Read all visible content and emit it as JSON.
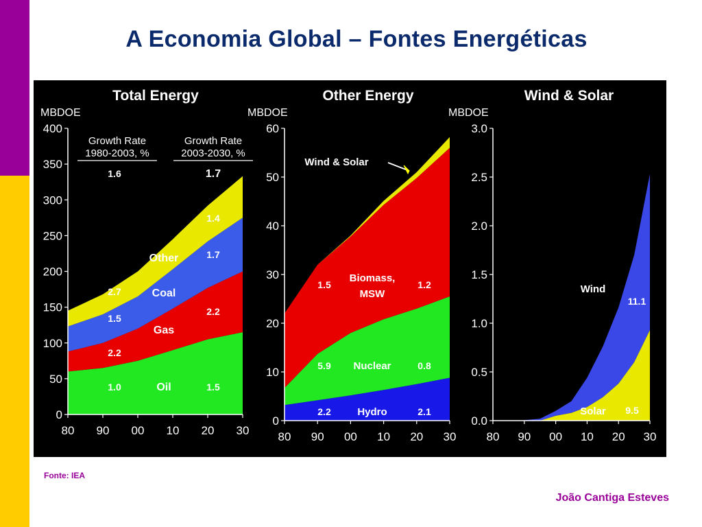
{
  "slide": {
    "title": "A Economia Global – Fontes Energéticas",
    "source": "Fonte: IEA",
    "author": "João Cantiga Esteves",
    "colors": {
      "sidebar_top": "#990099",
      "sidebar_bottom": "#ffcc00",
      "title": "#0b2a6b",
      "footer": "#990099"
    }
  },
  "chart_data": [
    {
      "type": "area",
      "stacked": true,
      "title": "Total Energy",
      "ylabel": "MBDOE",
      "ylim": [
        0,
        400
      ],
      "yticks": [
        0,
        50,
        100,
        150,
        200,
        250,
        300,
        350,
        400
      ],
      "xtick_labels": [
        "80",
        "90",
        "00",
        "10",
        "20",
        "30"
      ],
      "x": [
        1980,
        1990,
        2000,
        2010,
        2020,
        2030
      ],
      "series": [
        {
          "name": "Oil",
          "color": "#22e822",
          "values": [
            60,
            65,
            75,
            90,
            105,
            115
          ]
        },
        {
          "name": "Gas",
          "color": "#e80000",
          "values": [
            28,
            35,
            45,
            58,
            72,
            85
          ]
        },
        {
          "name": "Coal",
          "color": "#3a5ce8",
          "values": [
            35,
            40,
            45,
            55,
            65,
            75
          ]
        },
        {
          "name": "Other",
          "color": "#e8e800",
          "values": [
            22,
            28,
            35,
            42,
            50,
            58
          ]
        }
      ],
      "headers": [
        {
          "text": "Growth Rate\n1980-2003, %"
        },
        {
          "text": "Growth Rate\n2003-2030, %"
        }
      ],
      "annotations": [
        {
          "text": "1.6"
        },
        {
          "text": "1.7"
        },
        {
          "text": "2.7"
        },
        {
          "text": "1.4"
        },
        {
          "text": "Other"
        },
        {
          "text": "1.7"
        },
        {
          "text": "Coal"
        },
        {
          "text": "1.5"
        },
        {
          "text": "Gas"
        },
        {
          "text": "2.2"
        },
        {
          "text": "2.2"
        },
        {
          "text": "1.0"
        },
        {
          "text": "Oil"
        },
        {
          "text": "1.5"
        }
      ]
    },
    {
      "type": "area",
      "stacked": true,
      "title": "Other Energy",
      "ylabel": "MBDOE",
      "ylim": [
        0,
        60
      ],
      "yticks": [
        0,
        10,
        20,
        30,
        40,
        50,
        60
      ],
      "xtick_labels": [
        "80",
        "90",
        "00",
        "10",
        "20",
        "30"
      ],
      "x": [
        1980,
        1990,
        2000,
        2010,
        2020,
        2030
      ],
      "series": [
        {
          "name": "Hydro",
          "color": "#1818e8",
          "values": [
            3.2,
            4.2,
            5.2,
            6.3,
            7.5,
            8.8
          ]
        },
        {
          "name": "Nuclear",
          "color": "#22e822",
          "values": [
            3.5,
            9.5,
            12.8,
            14.5,
            15.5,
            16.7
          ]
        },
        {
          "name": "Biomass, MSW",
          "color": "#e80000",
          "values": [
            15.3,
            18.3,
            19.8,
            23.5,
            26.8,
            30.5
          ]
        },
        {
          "name": "Wind & Solar",
          "color": "#e8e800",
          "values": [
            0,
            0,
            0.2,
            0.8,
            1.2,
            2.2
          ]
        }
      ],
      "annotations": [
        {
          "text": "Wind & Solar"
        },
        {
          "text": "1.5"
        },
        {
          "text": "Biomass,"
        },
        {
          "text": "MSW"
        },
        {
          "text": "1.2"
        },
        {
          "text": "5.9"
        },
        {
          "text": "Nuclear"
        },
        {
          "text": "0.8"
        },
        {
          "text": "2.2"
        },
        {
          "text": "Hydro"
        },
        {
          "text": "2.1"
        }
      ]
    },
    {
      "type": "area",
      "stacked": true,
      "title": "Wind & Solar",
      "ylabel": "MBDOE",
      "ylim": [
        0,
        3.0
      ],
      "yticks": [
        0.0,
        0.5,
        1.0,
        1.5,
        2.0,
        2.5,
        3.0
      ],
      "xtick_labels": [
        "80",
        "90",
        "00",
        "10",
        "20",
        "30"
      ],
      "x": [
        1988,
        1995,
        2000,
        2005,
        2010,
        2015,
        2020,
        2025,
        2030
      ],
      "series": [
        {
          "name": "Solar",
          "color": "#e8e800",
          "values": [
            0.0,
            0.0,
            0.05,
            0.08,
            0.14,
            0.24,
            0.38,
            0.6,
            0.93
          ]
        },
        {
          "name": "Wind",
          "color": "#3a48e8",
          "values": [
            0.0,
            0.02,
            0.05,
            0.12,
            0.3,
            0.52,
            0.78,
            1.1,
            1.6
          ]
        }
      ],
      "annotations": [
        {
          "text": "Wind"
        },
        {
          "text": "11.1"
        },
        {
          "text": "Solar"
        },
        {
          "text": "9.5"
        }
      ]
    }
  ]
}
